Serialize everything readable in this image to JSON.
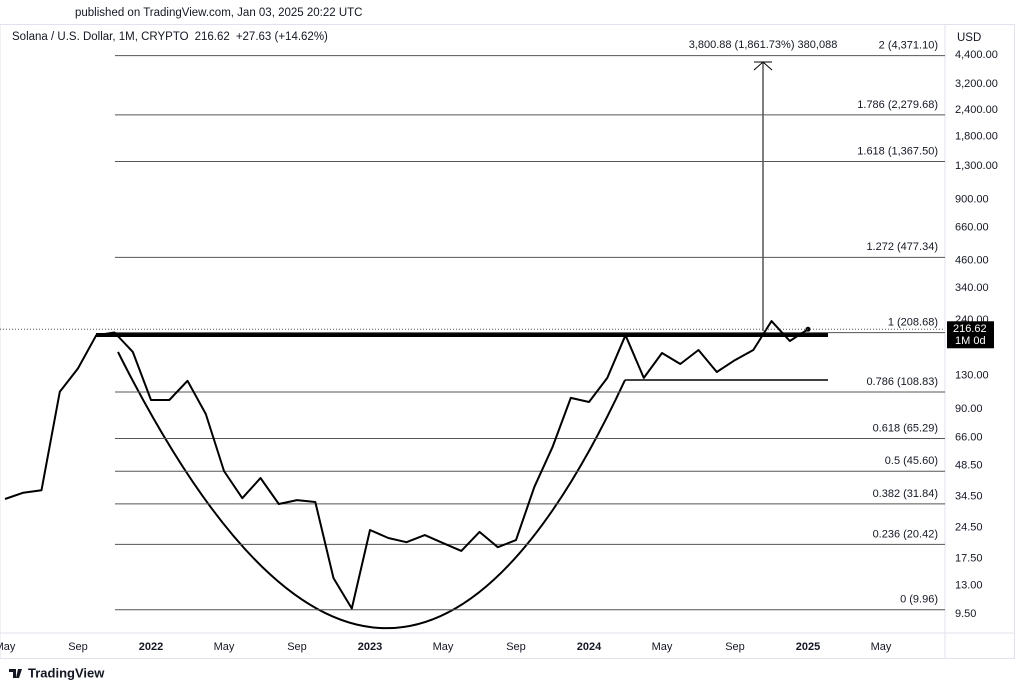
{
  "chart_data": {
    "type": "line",
    "log": true,
    "subtitle": "published on TradingView.com, Jan 03, 2025 20:22 UTC",
    "title": "Solana / U.S. Dollar, 1M, CRYPTO",
    "change": "+27.63 (+14.62%)",
    "currency": "USD",
    "interval_tag": "1M 0d",
    "brand": "TradingView",
    "color": "#000000",
    "x": [
      "2021-05",
      "2021-06",
      "2021-07",
      "2021-08",
      "2021-09",
      "2021-10",
      "2021-11",
      "2021-12",
      "2022-01",
      "2022-02",
      "2022-03",
      "2022-04",
      "2022-05",
      "2022-06",
      "2022-07",
      "2022-08",
      "2022-09",
      "2022-10",
      "2022-11",
      "2022-12",
      "2023-01",
      "2023-02",
      "2023-03",
      "2023-04",
      "2023-05",
      "2023-06",
      "2023-07",
      "2023-08",
      "2023-09",
      "2023-10",
      "2023-11",
      "2023-12",
      "2024-01",
      "2024-02",
      "2024-03",
      "2024-04",
      "2024-05",
      "2024-06",
      "2024-07",
      "2024-08",
      "2024-09",
      "2024-10",
      "2024-11",
      "2024-12",
      "2025-01"
    ],
    "values": [
      33.6,
      36,
      37,
      109,
      141,
      203,
      209,
      169,
      99.6,
      99.6,
      123,
      85.4,
      45.7,
      33.9,
      42.3,
      31.8,
      33.2,
      32.5,
      14.1,
      10.1,
      23.9,
      21.9,
      20.9,
      22.6,
      20.7,
      19,
      23.4,
      19.8,
      21.4,
      38.3,
      59.4,
      102,
      97.5,
      127,
      203,
      127,
      167,
      148,
      172.5,
      135.5,
      154.5,
      172.5,
      237,
      190.5,
      216.62
    ],
    "xlim": [
      "2021-05",
      "2025-07"
    ],
    "xticks": [
      {
        "value": "2021-05",
        "label": "May"
      },
      {
        "value": "2021-09",
        "label": "Sep"
      },
      {
        "value": "2022-01",
        "label": "2022"
      },
      {
        "value": "2022-05",
        "label": "May"
      },
      {
        "value": "2022-09",
        "label": "Sep"
      },
      {
        "value": "2023-01",
        "label": "2023"
      },
      {
        "value": "2023-05",
        "label": "May"
      },
      {
        "value": "2023-09",
        "label": "Sep"
      },
      {
        "value": "2024-01",
        "label": "2024"
      },
      {
        "value": "2024-05",
        "label": "May"
      },
      {
        "value": "2024-09",
        "label": "Sep"
      },
      {
        "value": "2025-01",
        "label": "2025"
      },
      {
        "value": "2025-05",
        "label": "May"
      }
    ],
    "ylim": [
      7.8,
      6120
    ],
    "yticks": [
      {
        "value": 4400,
        "label": "4,400.00"
      },
      {
        "value": 3200,
        "label": "3,200.00"
      },
      {
        "value": 2400,
        "label": "2,400.00"
      },
      {
        "value": 1800,
        "label": "1,800.00"
      },
      {
        "value": 1300,
        "label": "1,300.00"
      },
      {
        "value": 900,
        "label": "900.00"
      },
      {
        "value": 660,
        "label": "660.00"
      },
      {
        "value": 460,
        "label": "460.00"
      },
      {
        "value": 340,
        "label": "340.00"
      },
      {
        "value": 240,
        "label": "240.00"
      },
      {
        "value": 130,
        "label": "130.00"
      },
      {
        "value": 90,
        "label": "90.00"
      },
      {
        "value": 66,
        "label": "66.00"
      },
      {
        "value": 48.5,
        "label": "48.50"
      },
      {
        "value": 34.5,
        "label": "34.50"
      },
      {
        "value": 24.5,
        "label": "24.50"
      },
      {
        "value": 17.5,
        "label": "17.50"
      },
      {
        "value": 13,
        "label": "13.00"
      },
      {
        "value": 9.5,
        "label": "9.50"
      }
    ],
    "levels": [
      {
        "value": 4371.1,
        "label": "2 (4,371.10)"
      },
      {
        "value": 2279.68,
        "label": "1.786 (2,279.68)"
      },
      {
        "value": 1367.5,
        "label": "1.618 (1,367.50)"
      },
      {
        "value": 477.34,
        "label": "1.272 (477.34)"
      },
      {
        "value": 208.68,
        "label": "1 (208.68)"
      },
      {
        "value": 108.83,
        "label": "0.786 (108.83)"
      },
      {
        "value": 65.29,
        "label": "0.618 (65.29)"
      },
      {
        "value": 45.6,
        "label": "0.5 (45.60)"
      },
      {
        "value": 31.84,
        "label": "0.382 (31.84)"
      },
      {
        "value": 20.42,
        "label": "0.236 (20.42)"
      },
      {
        "value": 9.96,
        "label": "0 (9.96)"
      }
    ],
    "measure_label": "3,800.88 (1,861.73%) 380,088"
  }
}
